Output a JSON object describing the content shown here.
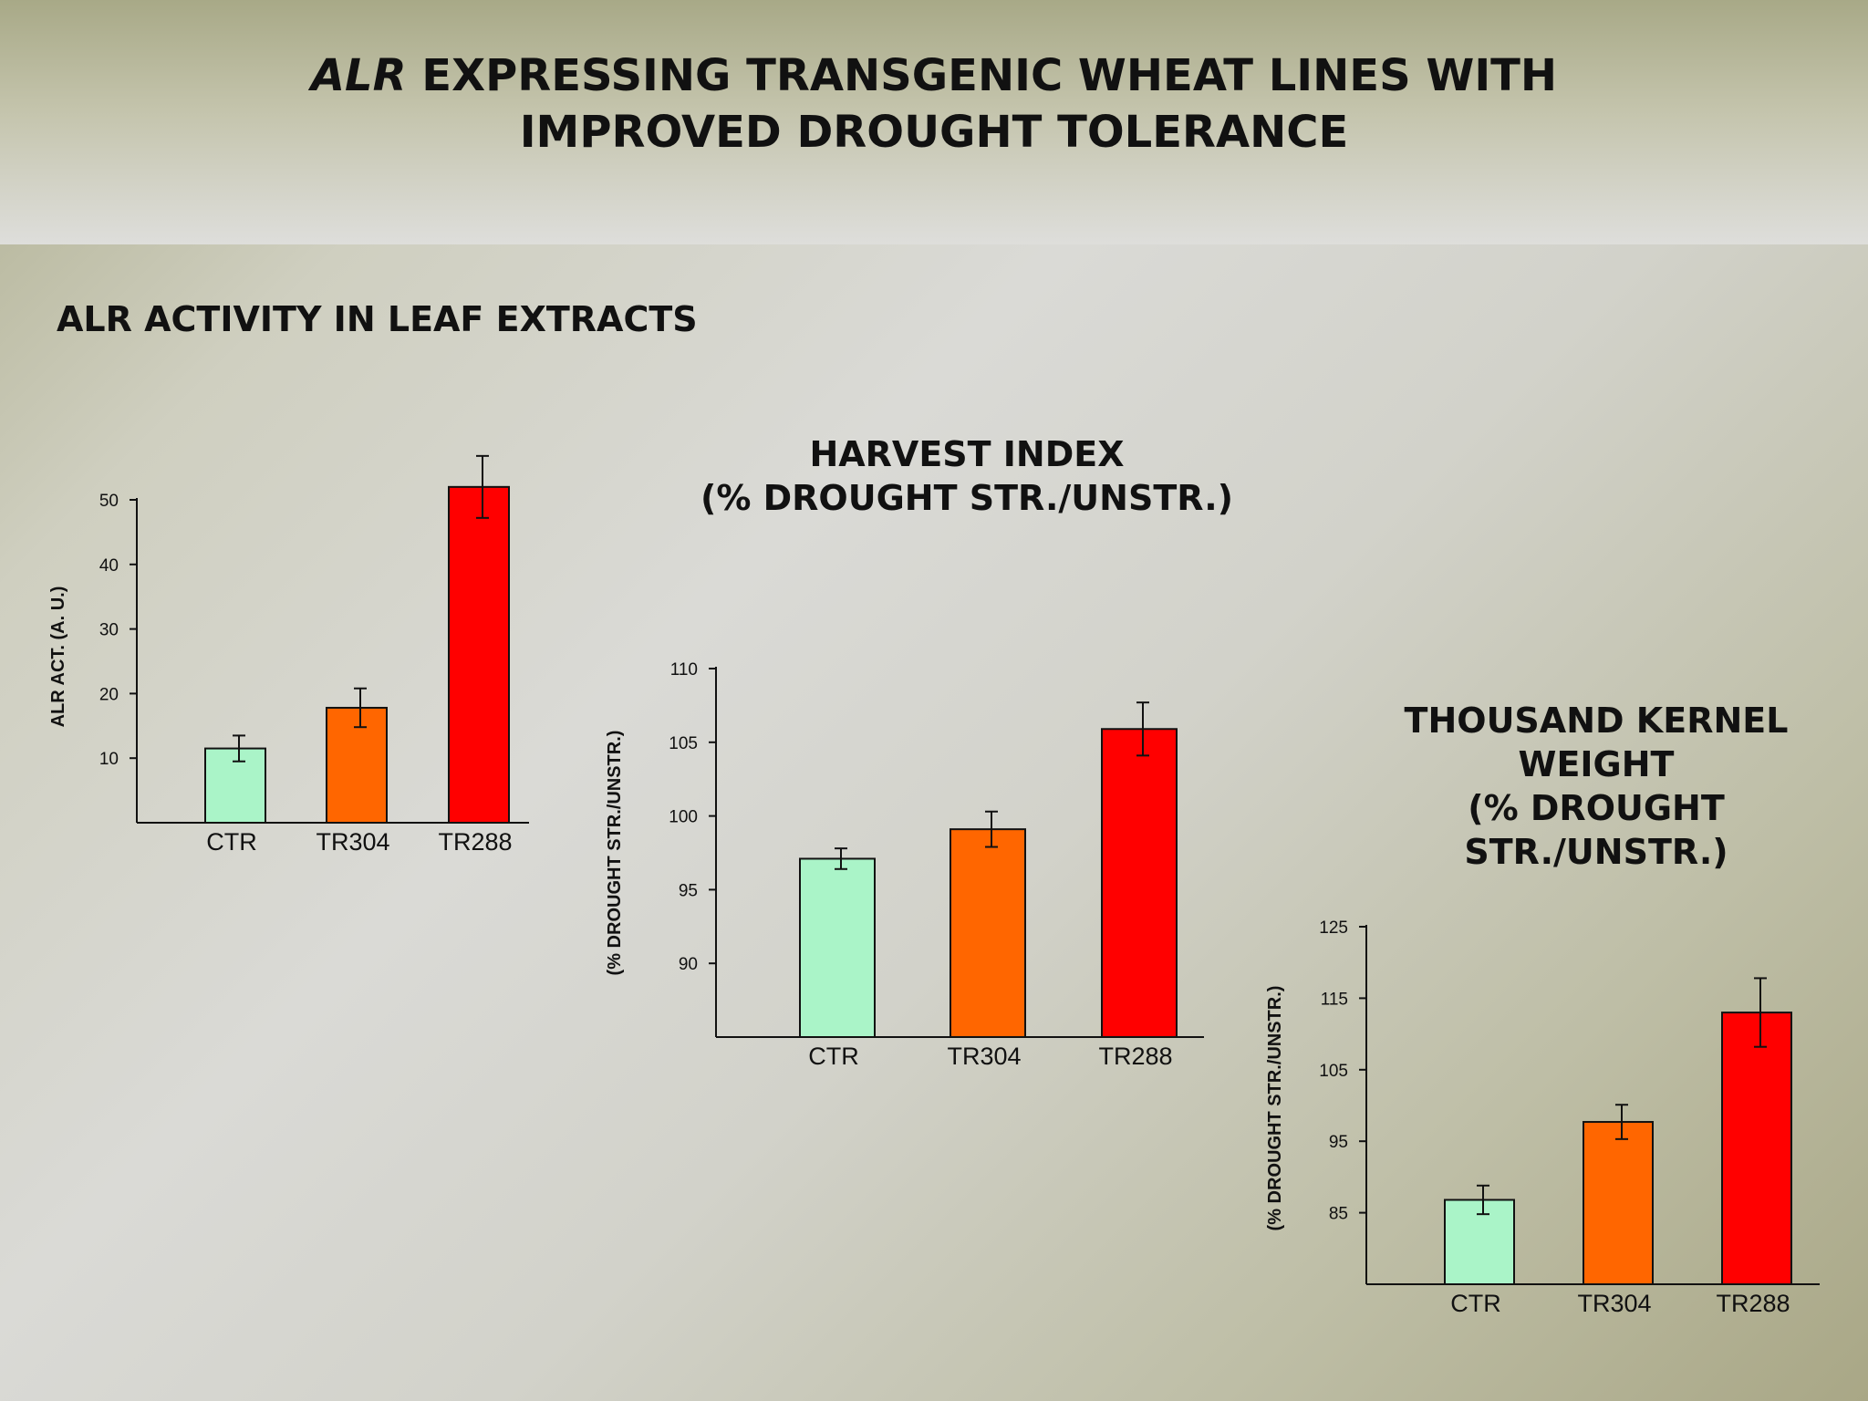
{
  "slide": {
    "title_italic": "ALR",
    "title_line1_rest": " EXPRESSING TRANSGENIC WHEAT LINES WITH",
    "title_line2": "IMPROVED DROUGHT TOLERANCE",
    "alr_section_heading": "ALR ACTIVITY IN LEAF EXTRACTS",
    "harvest_title_line1": "HARVEST INDEX",
    "harvest_title_line2": "(% DROUGHT STR./UNSTR.)",
    "tkw_title_line1": "THOUSAND KERNEL WEIGHT",
    "tkw_title_line2": "(% DROUGHT STR./UNSTR.)"
  },
  "colors": {
    "CTR": "#aaf4c8",
    "TR304": "#ff6600",
    "TR288": "#ff0000",
    "axis": "#111111"
  },
  "chart_data": [
    {
      "type": "bar",
      "title": "ALR ACTIVITY IN LEAF EXTRACTS",
      "categories": [
        "CTR",
        "TR304",
        "TR288"
      ],
      "values": [
        11.5,
        17.8,
        52
      ],
      "errors": [
        2.0,
        3.0,
        4.8
      ],
      "ylabel": "ALR ACT. (A. U.)",
      "ylim": [
        0,
        50
      ],
      "yticks": [
        10,
        20,
        30,
        40,
        50
      ],
      "grid": false
    },
    {
      "type": "bar",
      "title": "HARVEST INDEX (% DROUGHT STR./UNSTR.)",
      "categories": [
        "CTR",
        "TR304",
        "TR288"
      ],
      "values": [
        97.1,
        99.1,
        105.9
      ],
      "errors": [
        0.7,
        1.2,
        1.8
      ],
      "ylabel": "(% DROUGHT STR./UNSTR.)",
      "ylim": [
        85,
        110
      ],
      "yticks": [
        90,
        95,
        100,
        105,
        110
      ],
      "grid": false
    },
    {
      "type": "bar",
      "title": "THOUSAND KERNEL WEIGHT (% DROUGHT STR./UNSTR.)",
      "categories": [
        "CTR",
        "TR304",
        "TR288"
      ],
      "values": [
        86.8,
        97.7,
        113
      ],
      "errors": [
        2.0,
        2.4,
        4.8
      ],
      "ylabel": "(% DROUGHT STR./UNSTR.)",
      "ylim": [
        75,
        125
      ],
      "yticks": [
        85,
        95,
        105,
        115,
        125
      ],
      "grid": false
    }
  ]
}
